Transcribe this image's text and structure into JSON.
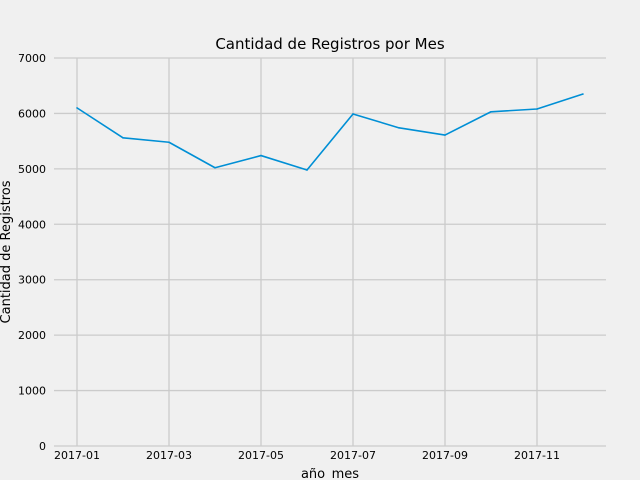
{
  "chart_data": {
    "type": "line",
    "title": "Cantidad de Registros por Mes",
    "xlabel": "año_mes",
    "ylabel": "Cantidad de Registros",
    "x": [
      "2017-01",
      "2017-02",
      "2017-03",
      "2017-04",
      "2017-05",
      "2017-06",
      "2017-07",
      "2017-08",
      "2017-09",
      "2017-10",
      "2017-11",
      "2017-12"
    ],
    "xticks": [
      "2017-01",
      "2017-03",
      "2017-05",
      "2017-07",
      "2017-09",
      "2017-11"
    ],
    "yticks": [
      "0",
      "1000",
      "2000",
      "3000",
      "4000",
      "5000",
      "6000",
      "7000"
    ],
    "ylim": [
      0,
      7000
    ],
    "grid": true,
    "series": [
      {
        "color": "#008fd5",
        "values": [
          6100,
          5560,
          5480,
          5020,
          5240,
          4980,
          5990,
          5740,
          5610,
          6030,
          6080,
          6350
        ]
      }
    ]
  }
}
